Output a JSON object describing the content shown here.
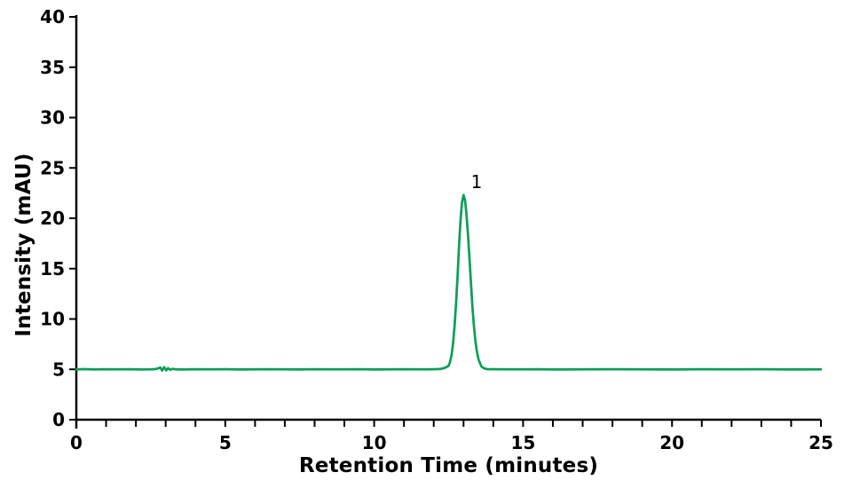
{
  "chart_data": {
    "type": "line",
    "title": "",
    "xlabel": "Retention Time (minutes)",
    "ylabel": "Intensity (mAU)",
    "xlim": [
      0,
      25
    ],
    "ylim": [
      0,
      40
    ],
    "x_major_ticks": [
      0,
      5,
      10,
      15,
      20,
      25
    ],
    "x_minor_tick_step": 1,
    "y_major_ticks": [
      0,
      5,
      10,
      15,
      20,
      25,
      30,
      35,
      40
    ],
    "grid": false,
    "legend": "none",
    "background_color": "#ffffff",
    "axis_color": "#000000",
    "line_color": "#0d9f58",
    "baseline_mAU": 5.0,
    "peaks": [
      {
        "label": "1",
        "retention_time_min": 13.0,
        "apex_mAU": 22.3
      }
    ],
    "annotations": [
      {
        "label": "1",
        "x": 13.44,
        "y": 23.0
      }
    ],
    "series": [
      {
        "name": "chromatogram",
        "points": [
          [
            0,
            5.0
          ],
          [
            0.3,
            5.02
          ],
          [
            0.6,
            4.99
          ],
          [
            1.0,
            5.01
          ],
          [
            1.4,
            5.0
          ],
          [
            1.8,
            5.01
          ],
          [
            2.2,
            4.99
          ],
          [
            2.5,
            5.0
          ],
          [
            2.65,
            5.02
          ],
          [
            2.75,
            5.1
          ],
          [
            2.82,
            5.18
          ],
          [
            2.88,
            4.88
          ],
          [
            2.95,
            5.22
          ],
          [
            3.02,
            4.9
          ],
          [
            3.08,
            5.12
          ],
          [
            3.15,
            4.96
          ],
          [
            3.22,
            5.04
          ],
          [
            3.35,
            5.0
          ],
          [
            3.6,
            4.99
          ],
          [
            4.0,
            5.01
          ],
          [
            4.5,
            5.0
          ],
          [
            5.0,
            5.01
          ],
          [
            5.5,
            4.99
          ],
          [
            6.0,
            5.0
          ],
          [
            6.5,
            5.01
          ],
          [
            7.0,
            5.0
          ],
          [
            7.5,
            4.99
          ],
          [
            8.0,
            5.01
          ],
          [
            8.5,
            5.0
          ],
          [
            9.0,
            5.0
          ],
          [
            9.5,
            5.01
          ],
          [
            10.0,
            4.99
          ],
          [
            10.5,
            5.0
          ],
          [
            11.0,
            5.01
          ],
          [
            11.5,
            5.0
          ],
          [
            11.8,
            5.0
          ],
          [
            12.0,
            5.01
          ],
          [
            12.2,
            5.03
          ],
          [
            12.3,
            5.08
          ],
          [
            12.4,
            5.18
          ],
          [
            12.5,
            5.36
          ],
          [
            12.55,
            5.76
          ],
          [
            12.6,
            6.47
          ],
          [
            12.65,
            7.6
          ],
          [
            12.7,
            9.3
          ],
          [
            12.75,
            11.6
          ],
          [
            12.8,
            14.3
          ],
          [
            12.85,
            17.2
          ],
          [
            12.9,
            19.8
          ],
          [
            12.95,
            21.6
          ],
          [
            13.0,
            22.3
          ],
          [
            13.05,
            21.8
          ],
          [
            13.1,
            20.4
          ],
          [
            13.15,
            18.4
          ],
          [
            13.2,
            16.0
          ],
          [
            13.25,
            13.5
          ],
          [
            13.3,
            11.2
          ],
          [
            13.35,
            9.3
          ],
          [
            13.4,
            7.8
          ],
          [
            13.45,
            6.74
          ],
          [
            13.5,
            6.0
          ],
          [
            13.6,
            5.29
          ],
          [
            13.7,
            5.08
          ],
          [
            13.8,
            5.02
          ],
          [
            14.0,
            5.01
          ],
          [
            14.5,
            5.0
          ],
          [
            15.0,
            5.0
          ],
          [
            15.5,
            5.01
          ],
          [
            16.0,
            4.99
          ],
          [
            17.0,
            5.0
          ],
          [
            18.0,
            5.01
          ],
          [
            19.0,
            5.0
          ],
          [
            20.0,
            4.99
          ],
          [
            21.0,
            5.01
          ],
          [
            22.0,
            5.0
          ],
          [
            23.0,
            5.01
          ],
          [
            24.0,
            4.99
          ],
          [
            25.0,
            5.0
          ]
        ]
      }
    ]
  }
}
